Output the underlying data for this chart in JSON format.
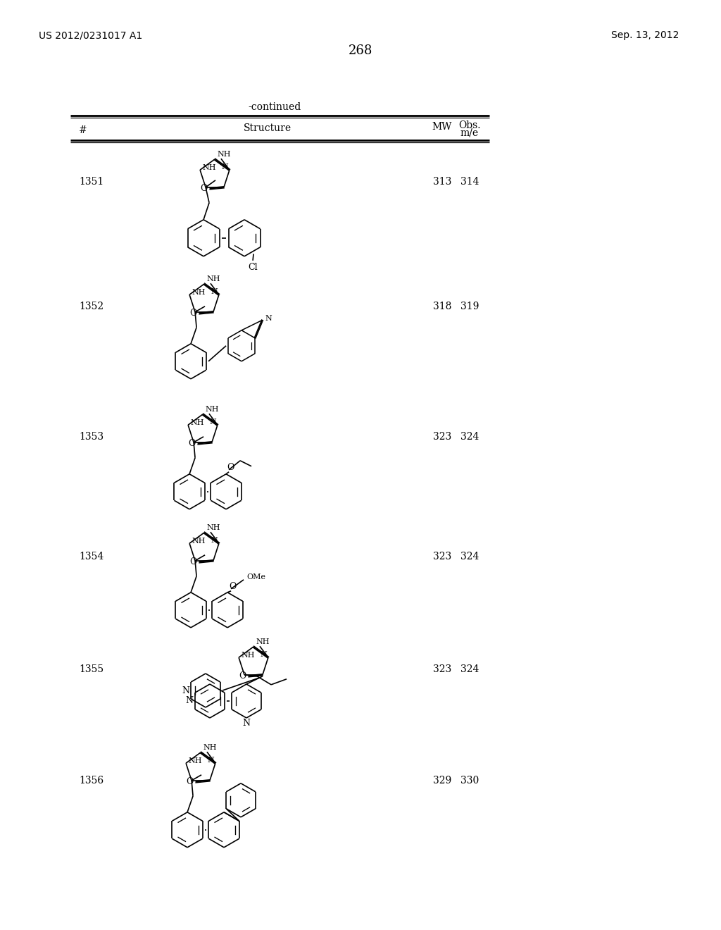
{
  "page_number": "268",
  "patent_number": "US 2012/0231017 A1",
  "patent_date": "Sep. 13, 2012",
  "continued_label": "-continued",
  "col_headers": [
    "#",
    "Structure",
    "MW",
    "Obs.\nm/e"
  ],
  "rows": [
    {
      "number": "1351",
      "mw": "313",
      "obs": "314"
    },
    {
      "number": "1352",
      "mw": "318",
      "obs": "319"
    },
    {
      "number": "1353",
      "mw": "323",
      "obs": "324"
    },
    {
      "number": "1354",
      "mw": "323",
      "obs": "324"
    },
    {
      "number": "1355",
      "mw": "323",
      "obs": "324"
    },
    {
      "number": "1356",
      "mw": "329",
      "obs": "330"
    }
  ]
}
